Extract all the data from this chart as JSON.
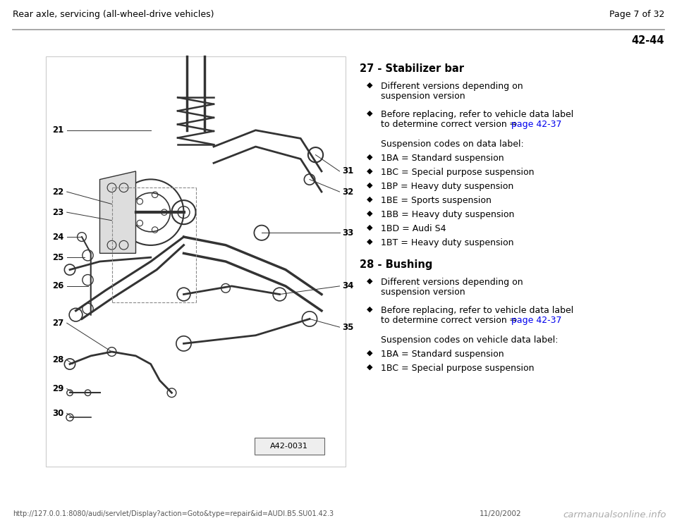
{
  "header_left": "Rear axle, servicing (all-wheel-drive vehicles)",
  "header_right": "Page 7 of 32",
  "page_number": "42-44",
  "header_line_color": "#999999",
  "bg_color": "#ffffff",
  "text_color": "#000000",
  "link_color": "#0000ee",
  "footer_url": "http://127.0.0.1:8080/audi/servlet/Display?action=Goto&type=repair&id=AUDI.B5.SU01.42.3",
  "footer_date": "11/20/2002",
  "footer_brand": "carmanualsonline.info",
  "image_label": "A42-0031",
  "section27_title": "27 - Stabilizer bar",
  "section27_sub1_line1": "Different versions depending on",
  "section27_sub1_line2": "suspension version",
  "section27_sub2_line1": "Before replacing, refer to vehicle data label",
  "section27_sub2_line2": "to determine correct version ⇒ ",
  "section27_sub2_link": "page 42-37",
  "section27_subheader": "Suspension codes on data label:",
  "section27_codes": [
    "1BA = Standard suspension",
    "1BC = Special purpose suspension",
    "1BP = Heavy duty suspension",
    "1BE = Sports suspension",
    "1BB = Heavy duty suspension",
    "1BD = Audi S4",
    "1BT = Heavy duty suspension"
  ],
  "section28_title": "28 - Bushing",
  "section28_sub1_line1": "Different versions depending on",
  "section28_sub1_line2": "suspension version",
  "section28_sub2_line1": "Before replacing, refer to vehicle data label",
  "section28_sub2_line2": "to determine correct version ⇒ ",
  "section28_sub2_link": "page 42-37",
  "section28_subheader": "Suspension codes on vehicle data label:",
  "section28_codes": [
    "1BA = Standard suspension",
    "1BC = Special purpose suspension"
  ],
  "diagram_border_color": "#cccccc",
  "diagram_line_color": "#333333",
  "diagram_bg": "#ffffff"
}
